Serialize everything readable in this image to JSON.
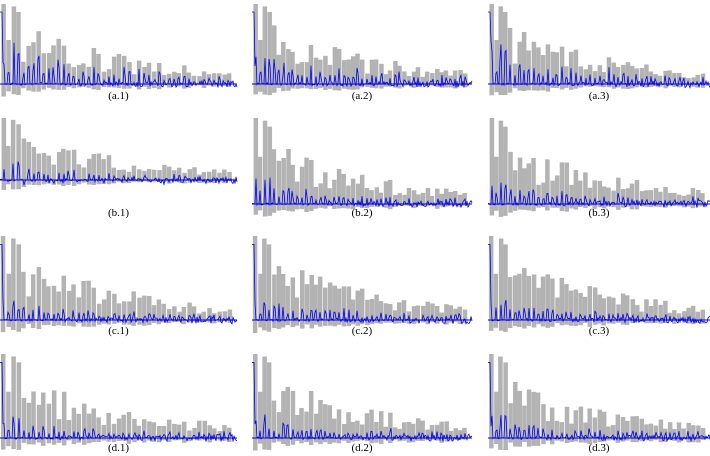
{
  "panels": [
    {
      "label": "(a.1)"
    },
    {
      "label": "(a.2)"
    },
    {
      "label": "(a.3)"
    },
    {
      "label": "(b.1)"
    },
    {
      "label": "(b.2)"
    },
    {
      "label": "(b.3)"
    },
    {
      "label": "(c.1)"
    },
    {
      "label": "(c.2)"
    },
    {
      "label": "(c.3)"
    },
    {
      "label": "(d.1)"
    },
    {
      "label": "(d.2)"
    },
    {
      "label": "(d.3)"
    }
  ]
}
